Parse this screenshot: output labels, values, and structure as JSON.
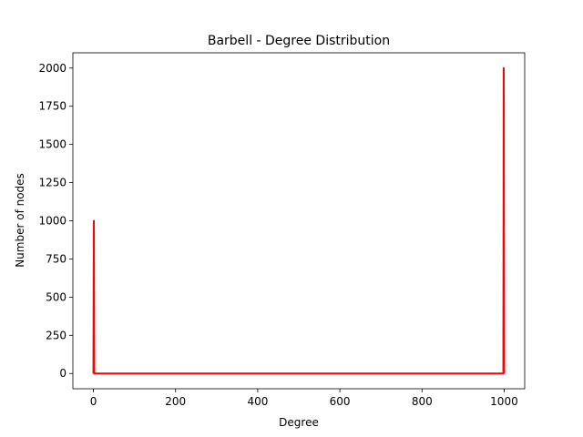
{
  "chart_data": {
    "type": "line",
    "title": "Barbell - Degree Distribution",
    "xlabel": "Degree",
    "ylabel": "Number of nodes",
    "xlim": [
      -50,
      1050
    ],
    "ylim": [
      -100,
      2100
    ],
    "x_ticks": [
      0,
      200,
      400,
      600,
      800,
      1000
    ],
    "y_ticks": [
      0,
      250,
      500,
      750,
      1000,
      1250,
      1500,
      1750,
      2000
    ],
    "grid": false,
    "line_color": "#ff0000",
    "series": [
      {
        "x": [
          0,
          1,
          2,
          3,
          998,
          999,
          1000
        ],
        "values": [
          0,
          1000,
          0,
          0,
          0,
          2000,
          0
        ]
      }
    ]
  }
}
